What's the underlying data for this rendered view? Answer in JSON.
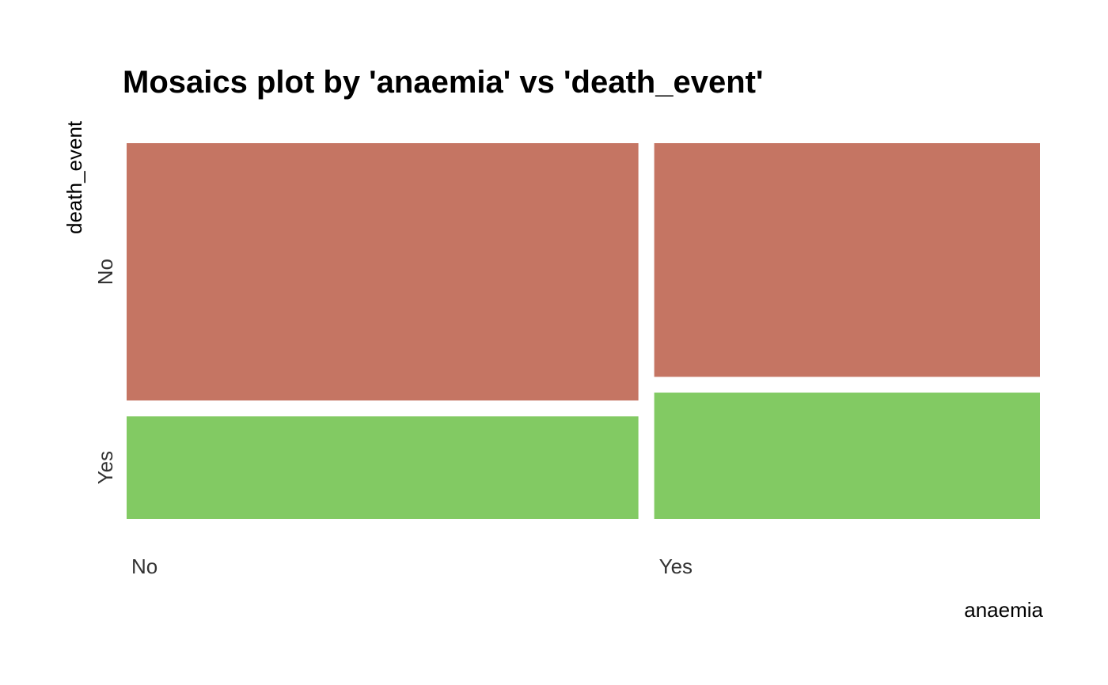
{
  "chart_data": {
    "type": "mosaic",
    "title": "Mosaics plot by 'anaemia' vs 'death_event'",
    "xlabel": "anaemia",
    "ylabel": "death_event",
    "x_categories": [
      "No",
      "Yes"
    ],
    "y_categories": [
      "No",
      "Yes"
    ],
    "x_proportions": [
      0.569,
      0.431
    ],
    "cells": [
      {
        "x": "No",
        "y": "No",
        "proportion_within_x": 0.706
      },
      {
        "x": "No",
        "y": "Yes",
        "proportion_within_x": 0.294
      },
      {
        "x": "Yes",
        "y": "No",
        "proportion_within_x": 0.643
      },
      {
        "x": "Yes",
        "y": "Yes",
        "proportion_within_x": 0.357
      }
    ],
    "colors": {
      "No": "#c57563",
      "Yes": "#82ca63"
    },
    "grid": false,
    "legend": "none"
  }
}
